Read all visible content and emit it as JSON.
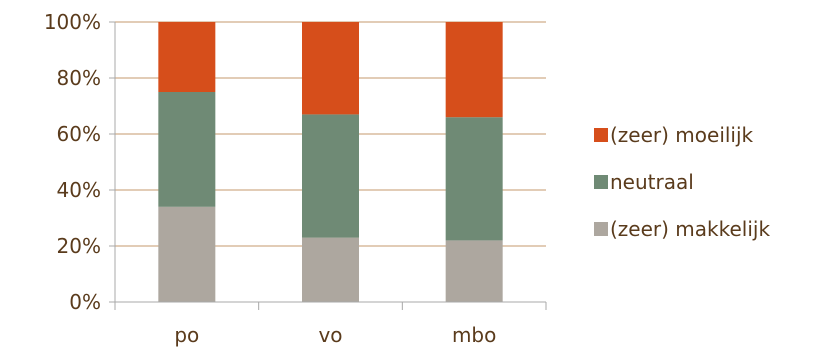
{
  "chart_data": {
    "type": "bar",
    "stacked": true,
    "normalized": true,
    "categories": [
      "po",
      "vo",
      "mbo"
    ],
    "series": [
      {
        "name": "(zeer) makkelijk",
        "values": [
          34,
          23,
          22
        ],
        "color": "#ada79f"
      },
      {
        "name": "neutraal",
        "values": [
          41,
          44,
          44
        ],
        "color": "#6f8a75"
      },
      {
        "name": "(zeer) moeilijk",
        "values": [
          25,
          33,
          34
        ],
        "color": "#d64e1b"
      }
    ],
    "ylim": [
      0,
      100
    ],
    "yticks": [
      "0%",
      "20%",
      "40%",
      "60%",
      "80%",
      "100%"
    ],
    "grid": true,
    "legend_position": "right",
    "legend_order": [
      "(zeer) moeilijk",
      "neutraal",
      "(zeer) makkelijk"
    ],
    "title": "",
    "xlabel": "",
    "ylabel": ""
  }
}
